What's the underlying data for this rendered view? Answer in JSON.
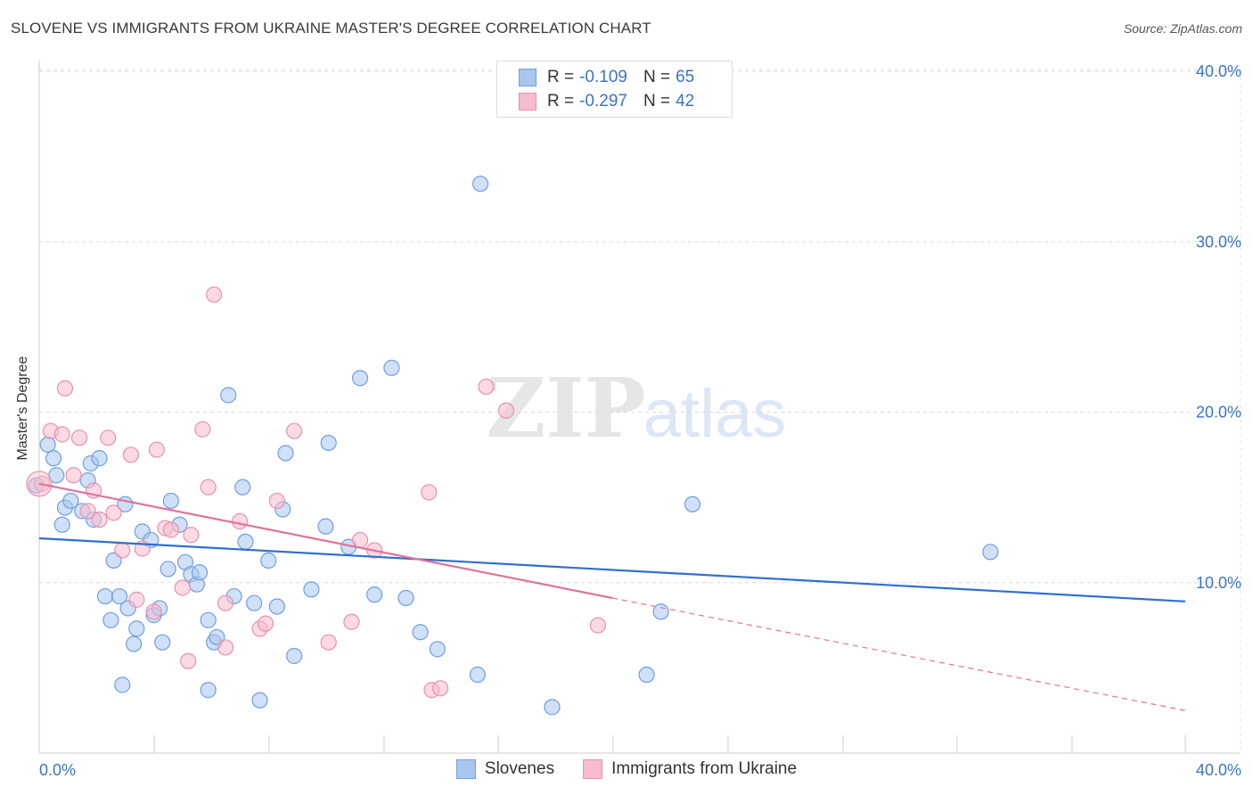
{
  "title": "SLOVENE VS IMMIGRANTS FROM UKRAINE MASTER'S DEGREE CORRELATION CHART",
  "source": "Source: ZipAtlas.com",
  "watermark": {
    "zip": "ZIP",
    "atlas": "atlas"
  },
  "legend": [
    {
      "r_label": "R =",
      "r_value": "-0.109",
      "n_label": "N =",
      "n_value": "65",
      "color": "#a9c6ee",
      "stroke": "#6f9fe0"
    },
    {
      "r_label": "R =",
      "r_value": "-0.297",
      "n_label": "N =",
      "n_value": "42",
      "color": "#f7bccd",
      "stroke": "#ea90ad"
    }
  ],
  "chart_data": {
    "type": "scatter",
    "title": "SLOVENE VS IMMIGRANTS FROM UKRAINE MASTER'S DEGREE CORRELATION CHART",
    "xlabel": "",
    "ylabel": "Master's Degree",
    "xlim": [
      0,
      40
    ],
    "ylim": [
      0,
      40
    ],
    "x_tick_labels": [
      "0.0%",
      "40.0%"
    ],
    "y_tick_labels": [
      "10.0%",
      "20.0%",
      "30.0%",
      "40.0%"
    ],
    "y_ticks": [
      10,
      20,
      30,
      40
    ],
    "grid": true,
    "series": [
      {
        "name": "Slovenes",
        "color": "#a9c6ee",
        "stroke": "#6f9fe0",
        "line_color": "#2f6fcc",
        "trend": {
          "x0": 0,
          "y0": 12.6,
          "x1": 40,
          "y1": 8.9
        },
        "points": [
          [
            0.3,
            18.1
          ],
          [
            0.5,
            17.3
          ],
          [
            0.6,
            16.3
          ],
          [
            0.8,
            13.4
          ],
          [
            0.9,
            14.4
          ],
          [
            1.1,
            14.8
          ],
          [
            1.5,
            14.2
          ],
          [
            1.7,
            16.0
          ],
          [
            1.8,
            17.0
          ],
          [
            1.9,
            13.7
          ],
          [
            2.1,
            17.3
          ],
          [
            2.3,
            9.2
          ],
          [
            2.5,
            7.8
          ],
          [
            2.6,
            11.3
          ],
          [
            2.8,
            9.2
          ],
          [
            3.0,
            14.6
          ],
          [
            3.1,
            8.5
          ],
          [
            3.3,
            6.4
          ],
          [
            3.4,
            7.3
          ],
          [
            3.6,
            13.0
          ],
          [
            3.9,
            12.5
          ],
          [
            4.0,
            8.1
          ],
          [
            4.2,
            8.5
          ],
          [
            4.3,
            6.5
          ],
          [
            4.5,
            10.8
          ],
          [
            4.6,
            14.8
          ],
          [
            4.9,
            13.4
          ],
          [
            5.1,
            11.2
          ],
          [
            5.3,
            10.5
          ],
          [
            5.5,
            9.9
          ],
          [
            5.6,
            10.6
          ],
          [
            5.9,
            3.7
          ],
          [
            5.9,
            7.8
          ],
          [
            6.1,
            6.5
          ],
          [
            6.2,
            6.8
          ],
          [
            6.6,
            21.0
          ],
          [
            6.8,
            9.2
          ],
          [
            7.1,
            15.6
          ],
          [
            7.2,
            12.4
          ],
          [
            7.5,
            8.8
          ],
          [
            7.7,
            3.1
          ],
          [
            8.0,
            11.3
          ],
          [
            8.3,
            8.6
          ],
          [
            8.5,
            14.3
          ],
          [
            8.6,
            17.6
          ],
          [
            8.9,
            5.7
          ],
          [
            9.5,
            9.6
          ],
          [
            10.0,
            13.3
          ],
          [
            10.1,
            18.2
          ],
          [
            10.8,
            12.1
          ],
          [
            11.2,
            22.0
          ],
          [
            11.7,
            9.3
          ],
          [
            12.3,
            22.6
          ],
          [
            12.8,
            9.1
          ],
          [
            13.3,
            7.1
          ],
          [
            13.9,
            6.1
          ],
          [
            15.3,
            4.6
          ],
          [
            15.4,
            33.4
          ],
          [
            17.9,
            2.7
          ],
          [
            21.2,
            4.6
          ],
          [
            21.7,
            8.3
          ],
          [
            22.8,
            14.6
          ],
          [
            33.2,
            11.8
          ],
          [
            -0.1,
            15.7
          ],
          [
            2.9,
            4.0
          ]
        ]
      },
      {
        "name": "Immigrants from Ukraine",
        "color": "#f7bccd",
        "stroke": "#ea90ad",
        "line_color": "#e0729a",
        "trend": {
          "x0": 0,
          "y0": 15.8,
          "x1": 20,
          "y1": 9.1,
          "dash_x1": 40,
          "dash_y1": 2.5
        },
        "points": [
          [
            0.1,
            15.8
          ],
          [
            0.4,
            18.9
          ],
          [
            0.8,
            18.7
          ],
          [
            0.9,
            21.4
          ],
          [
            1.2,
            16.3
          ],
          [
            1.4,
            18.5
          ],
          [
            1.7,
            14.2
          ],
          [
            1.9,
            15.4
          ],
          [
            2.1,
            13.7
          ],
          [
            2.4,
            18.5
          ],
          [
            2.6,
            14.1
          ],
          [
            2.9,
            11.9
          ],
          [
            3.2,
            17.5
          ],
          [
            3.4,
            9.0
          ],
          [
            3.6,
            12.0
          ],
          [
            4.0,
            8.3
          ],
          [
            4.1,
            17.8
          ],
          [
            4.4,
            13.2
          ],
          [
            4.6,
            13.1
          ],
          [
            5.0,
            9.7
          ],
          [
            5.2,
            5.4
          ],
          [
            5.3,
            12.8
          ],
          [
            5.7,
            19.0
          ],
          [
            5.9,
            15.6
          ],
          [
            6.1,
            26.9
          ],
          [
            6.5,
            6.2
          ],
          [
            6.5,
            8.8
          ],
          [
            7.0,
            13.6
          ],
          [
            7.7,
            7.3
          ],
          [
            7.9,
            7.6
          ],
          [
            8.3,
            14.8
          ],
          [
            8.9,
            18.9
          ],
          [
            10.1,
            6.5
          ],
          [
            10.9,
            7.7
          ],
          [
            11.2,
            12.5
          ],
          [
            11.7,
            11.9
          ],
          [
            13.7,
            3.7
          ],
          [
            14.0,
            3.8
          ],
          [
            13.6,
            15.3
          ],
          [
            15.6,
            21.5
          ],
          [
            16.3,
            20.1
          ],
          [
            19.5,
            7.5
          ]
        ]
      }
    ]
  }
}
